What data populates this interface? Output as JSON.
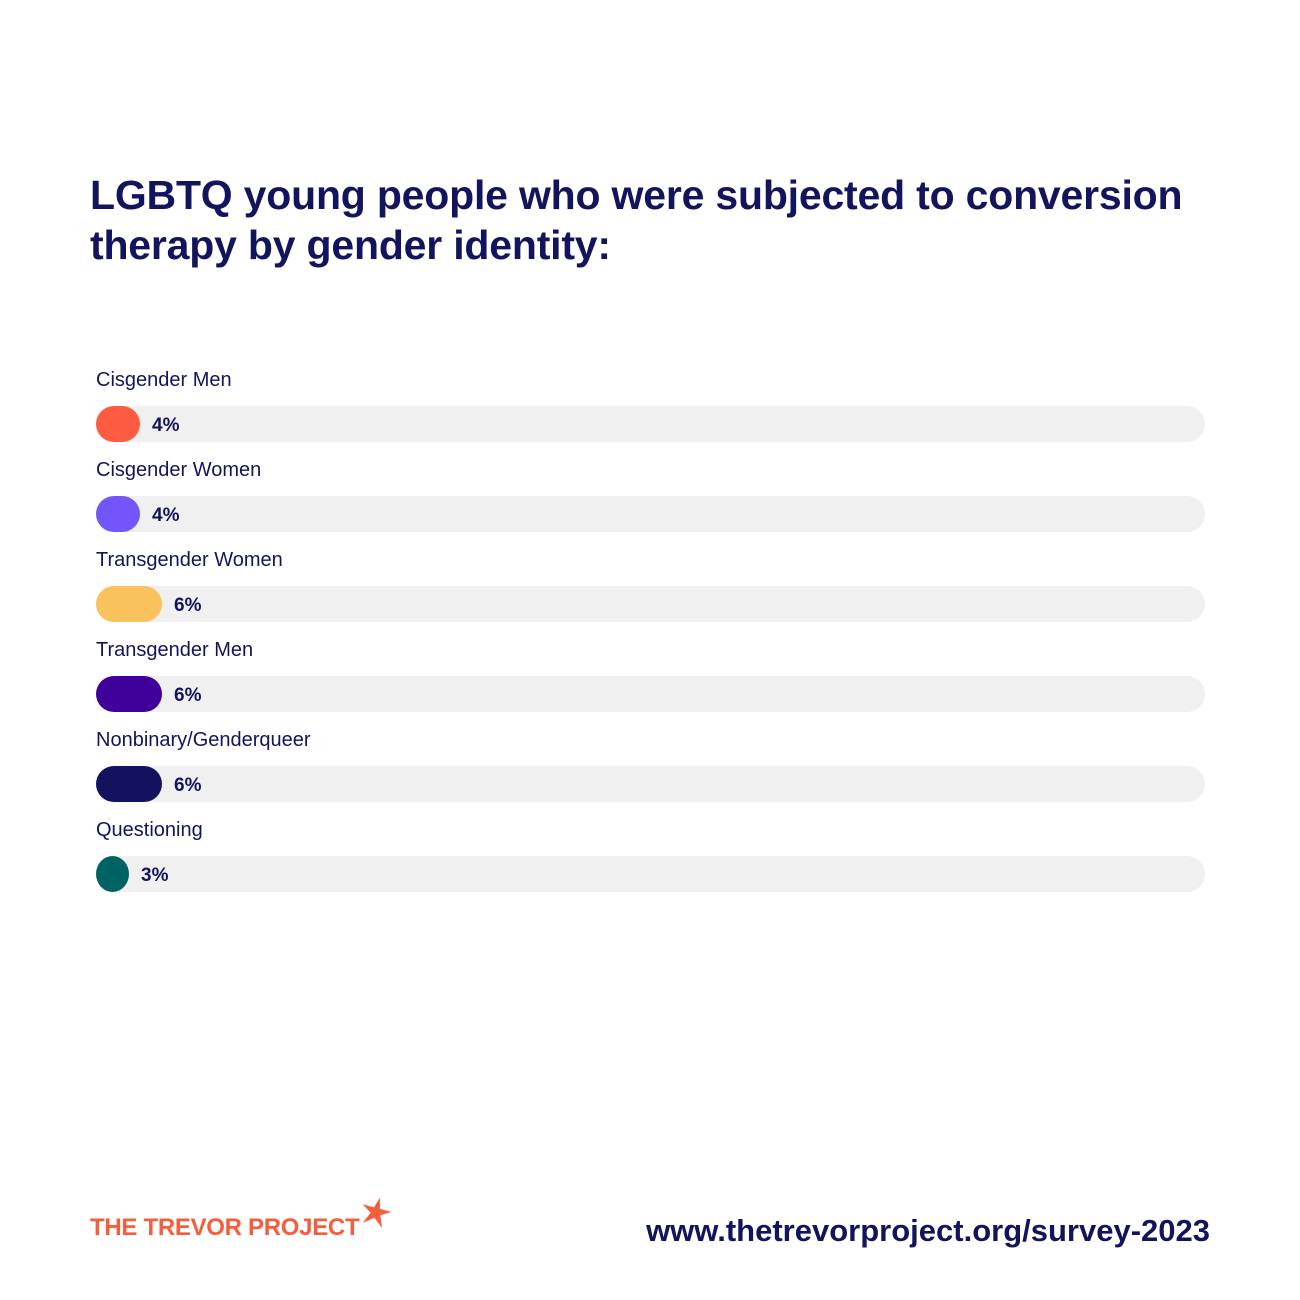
{
  "title": "LGBTQ young people who were subjected to conversion therapy by gender identity:",
  "chart_data": {
    "type": "bar",
    "orientation": "horizontal",
    "categories": [
      "Cisgender Men",
      "Cisgender Women",
      "Transgender Women",
      "Transgender Men",
      "Nonbinary/Genderqueer",
      "Questioning"
    ],
    "values": [
      4,
      4,
      6,
      6,
      6,
      3
    ],
    "value_labels": [
      "4%",
      "4%",
      "6%",
      "6%",
      "6%",
      "3%"
    ],
    "colors": [
      "#fe5c42",
      "#7455fc",
      "#fac25c",
      "#40009a",
      "#12125e",
      "#006363"
    ],
    "track_color": "#f0f0f0",
    "xlim": [
      0,
      100
    ]
  },
  "footer": {
    "logo_text": "THE TREVOR PROJECT",
    "logo_icon": "star-icon",
    "url": "www.thetrevorproject.org/survey-2023"
  }
}
